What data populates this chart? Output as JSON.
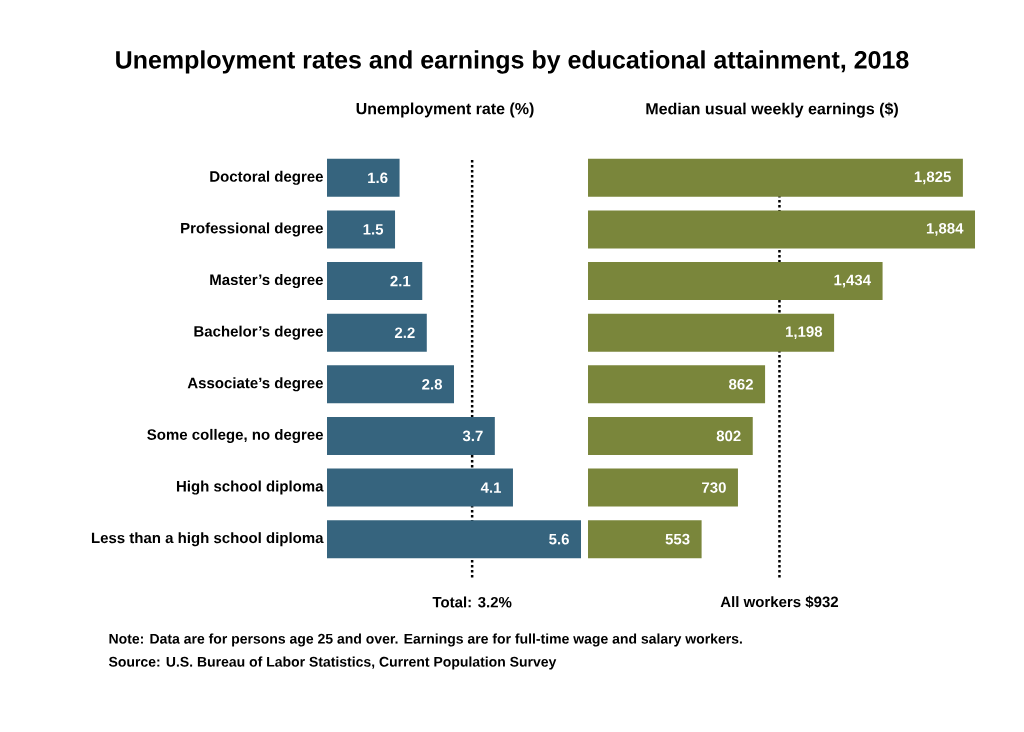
{
  "chart_data": [
    {
      "type": "bar",
      "orientation": "horizontal",
      "title": "Unemployment rates and earnings by educational attainment, 2018",
      "subtitle": "Unemployment rate (%)",
      "categories": [
        "Doctoral degree",
        "Professional degree",
        "Master’s degree",
        "Bachelor’s degree",
        "Associate’s degree",
        "Some college, no degree",
        "High school diploma",
        "Less than a high school diploma"
      ],
      "values": [
        1.6,
        1.5,
        2.1,
        2.2,
        2.8,
        3.7,
        4.1,
        5.6
      ],
      "color": "#36647e",
      "xlim": [
        0,
        5.6
      ],
      "data_labels": true,
      "tick_labels": "y",
      "ref_lines": [
        {
          "axis": "x",
          "value": 3.2,
          "label": "Total: 3.2%",
          "line_style": "dotted"
        }
      ],
      "annotations": [
        "Note: Data are for persons age 25 and over. Earnings are for full-time wage and salary workers.",
        "Source: U.S. Bureau of Labor Statistics, Current Population Survey"
      ]
    },
    {
      "type": "bar",
      "orientation": "horizontal",
      "subtitle": "Median usual weekly earnings ($)",
      "categories": [
        null,
        null,
        null,
        null,
        null,
        null,
        null,
        null
      ],
      "values": [
        1825,
        1884,
        1434,
        1198,
        862,
        802,
        730,
        553
      ],
      "color": "#7a863b",
      "xlim": [
        0,
        1884
      ],
      "tick_labels": false,
      "value_labels": [
        "1,825",
        "1,884",
        "1,434",
        "1,198",
        "862",
        "802",
        "730",
        "553"
      ],
      "ref_lines": [
        {
          "axis": "x",
          "value": 932,
          "label": "All workers $932",
          "line_style": "dotted"
        }
      ]
    }
  ]
}
